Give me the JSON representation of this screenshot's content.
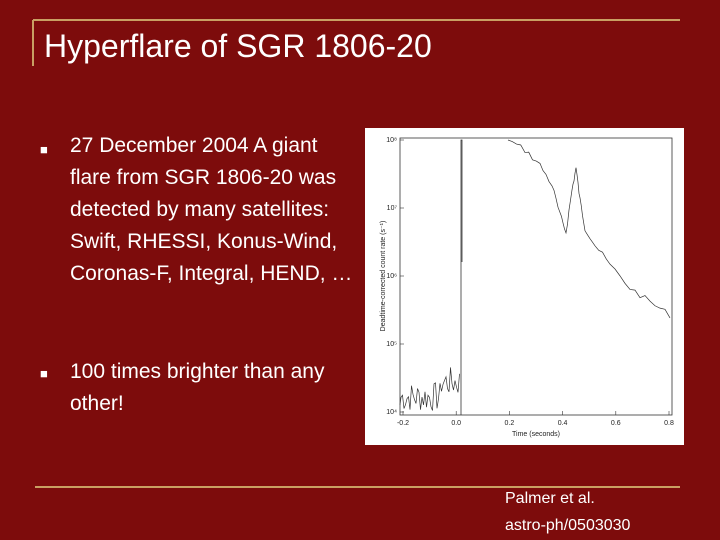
{
  "slide": {
    "title": "Hyperflare of SGR 1806-20",
    "bullets": [
      "27 December 2004 A giant flare from SGR 1806-20 was detected by many satellites: Swift, RHESSI, Konus-Wind, Coronas-F, Integral, HEND, …",
      "100 times brighter than any other!"
    ],
    "citation": [
      "Palmer et al.",
      "astro-ph/0503030"
    ],
    "figure": {
      "x_label": "Time (seconds)",
      "y_label": "Deadtime-corrected count rate (s⁻¹)",
      "x_tick_labels": [
        "-0.2",
        "0.0",
        "0.2",
        "0.4",
        "0.6",
        "0.8"
      ],
      "y_tick_labels": [
        "10⁴",
        "10⁵",
        "10⁶",
        "10⁷",
        "10⁸"
      ]
    }
  }
}
